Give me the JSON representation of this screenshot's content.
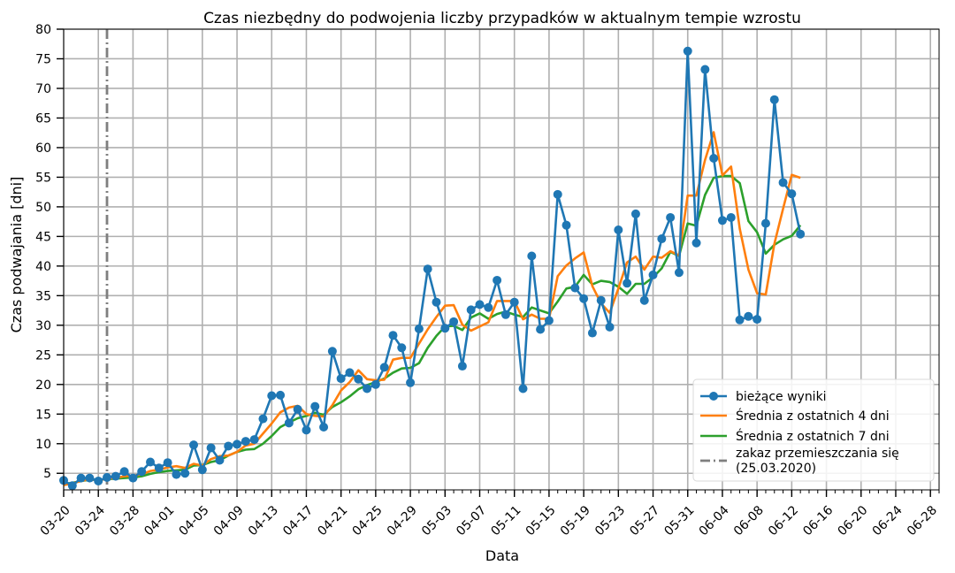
{
  "chart_data": {
    "type": "line",
    "title": "Czas niezbędny do podwojenia liczby przypadków w aktualnym tempie wzrostu",
    "xlabel": "Data",
    "ylabel": "Czas podwajania [dni]",
    "ylim": [
      2.2,
      80
    ],
    "xlim": [
      "03-20",
      "06-29"
    ],
    "grid": true,
    "legend_position": "lower-right",
    "x_ticks": [
      "03-20",
      "03-24",
      "03-28",
      "04-01",
      "04-05",
      "04-09",
      "04-13",
      "04-17",
      "04-21",
      "04-25",
      "04-29",
      "05-03",
      "05-07",
      "05-11",
      "05-15",
      "05-19",
      "05-23",
      "05-27",
      "05-31",
      "06-04",
      "06-08",
      "06-12",
      "06-16",
      "06-20",
      "06-24",
      "06-28"
    ],
    "y_ticks": [
      5,
      10,
      15,
      20,
      25,
      30,
      35,
      40,
      45,
      50,
      55,
      60,
      65,
      70,
      75,
      80
    ],
    "vline": {
      "date": "03-25",
      "name": "zakaz przemieszczania się\n(25.03.2020)",
      "color": "#7f7f7f"
    },
    "series": [
      {
        "name": "bieżące wyniki",
        "color": "#1f77b4",
        "marker": "circle",
        "start_date": "03-20",
        "values": [
          3.8,
          2.9,
          4.2,
          4.2,
          3.7,
          4.3,
          4.5,
          5.3,
          4.2,
          5.3,
          6.9,
          5.9,
          6.8,
          4.8,
          5.0,
          9.8,
          5.6,
          9.3,
          7.2,
          9.6,
          9.9,
          10.4,
          10.7,
          14.2,
          18.1,
          18.2,
          13.5,
          15.8,
          12.3,
          16.3,
          12.8,
          25.6,
          21.0,
          22.0,
          20.9,
          19.3,
          20.0,
          22.9,
          28.3,
          26.2,
          20.3,
          29.4,
          39.5,
          33.9,
          29.5,
          30.6,
          23.1,
          32.6,
          33.5,
          33.0,
          37.6,
          31.8,
          33.9,
          19.3,
          41.7,
          29.3,
          30.8,
          52.1,
          46.9,
          36.3,
          34.5,
          28.7,
          34.2,
          29.7,
          46.1,
          37.1,
          48.8,
          34.2,
          38.5,
          44.6,
          48.2,
          38.9,
          76.3,
          43.9,
          73.2,
          58.2,
          47.7,
          48.2,
          30.9,
          31.5,
          31.0,
          47.2,
          68.1,
          54.1,
          52.2,
          45.4
        ]
      },
      {
        "name": "Średnia z ostatnich 4 dni",
        "color": "#ff7f0e",
        "start_date": "03-20",
        "values": [
          3.0,
          3.3,
          3.7,
          4.0,
          3.8,
          4.1,
          4.2,
          4.5,
          4.6,
          4.8,
          5.4,
          5.6,
          6.0,
          6.2,
          5.9,
          6.6,
          6.3,
          7.4,
          7.9,
          8.0,
          8.6,
          9.7,
          10.0,
          11.7,
          13.4,
          15.3,
          16.1,
          16.4,
          15.0,
          14.7,
          14.6,
          16.5,
          19.0,
          20.4,
          22.4,
          20.9,
          20.7,
          20.8,
          24.2,
          24.5,
          24.5,
          26.9,
          29.3,
          31.4,
          33.3,
          33.4,
          30.1,
          29.1,
          29.8,
          30.5,
          34.1,
          34.1,
          34.1,
          31.0,
          31.8,
          31.1,
          31.1,
          38.3,
          40.1,
          41.3,
          42.3,
          36.6,
          33.7,
          32.1,
          36.2,
          40.6,
          41.6,
          39.4,
          41.6,
          41.4,
          42.5,
          41.8,
          51.9,
          51.9,
          57.9,
          62.6,
          55.3,
          56.8,
          46.3,
          39.4,
          35.4,
          35.2,
          43.8,
          49.7,
          55.4,
          54.9
        ]
      },
      {
        "name": "Średnia z ostatnich 7 dni",
        "color": "#2ca02c",
        "start_date": "03-20",
        "values": [
          3.2,
          3.4,
          3.7,
          3.9,
          3.9,
          4.0,
          4.1,
          4.2,
          4.3,
          4.5,
          4.9,
          5.2,
          5.4,
          5.5,
          5.6,
          6.3,
          6.4,
          6.9,
          7.2,
          8.0,
          8.6,
          9.0,
          9.1,
          10.0,
          11.3,
          12.8,
          13.6,
          14.3,
          14.7,
          15.2,
          14.9,
          16.2,
          17.0,
          18.0,
          19.2,
          19.9,
          20.4,
          21.0,
          22.0,
          22.7,
          22.8,
          23.6,
          26.2,
          28.2,
          29.8,
          29.9,
          29.2,
          31.3,
          32.0,
          31.1,
          31.9,
          32.3,
          31.8,
          31.4,
          33.0,
          32.5,
          32.0,
          34.0,
          36.2,
          36.5,
          38.5,
          36.9,
          37.5,
          37.3,
          36.5,
          35.3,
          37.0,
          37.0,
          38.1,
          39.6,
          42.4,
          41.7,
          47.2,
          46.8,
          52.0,
          54.9,
          55.2,
          55.2,
          54.0,
          47.6,
          45.7,
          42.1,
          43.6,
          44.5,
          45.1,
          46.9
        ]
      }
    ]
  }
}
